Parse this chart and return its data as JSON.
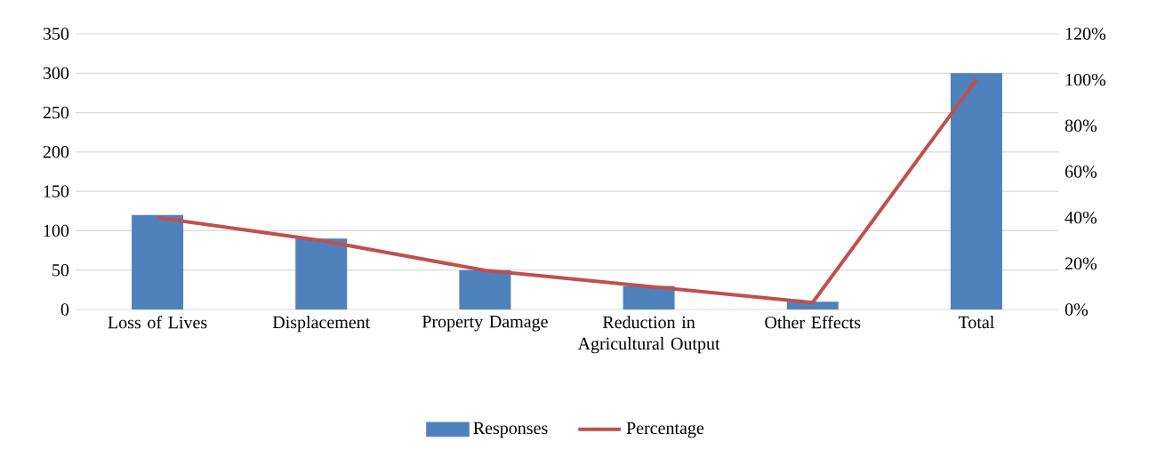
{
  "chart_data": {
    "type": "bar",
    "categories": [
      "Loss of Lives",
      "Displacement",
      "Property Damage",
      "Reduction in Agricultural Output",
      "Other Effects",
      "Total"
    ],
    "series": [
      {
        "name": "Responses",
        "color": "#4f81bd",
        "values": [
          120,
          90,
          50,
          30,
          10,
          300
        ]
      },
      {
        "name": "Percentage",
        "type": "line",
        "axis": "y2",
        "color": "#c0504d",
        "values": [
          40,
          30,
          17,
          10,
          3,
          100
        ]
      }
    ],
    "ylim": [
      0,
      350
    ],
    "yticks": [
      0,
      50,
      100,
      150,
      200,
      250,
      300,
      350
    ],
    "y2lim": [
      0,
      120
    ],
    "y2ticks": [
      {
        "value": 0,
        "label": "0%"
      },
      {
        "value": 20,
        "label": "20%"
      },
      {
        "value": 40,
        "label": "40%"
      },
      {
        "value": 60,
        "label": "60%"
      },
      {
        "value": 80,
        "label": "80%"
      },
      {
        "value": 100,
        "label": "100%"
      },
      {
        "value": 120,
        "label": "120%"
      }
    ],
    "grid": "y",
    "legend": "bottom",
    "marker": "none"
  }
}
